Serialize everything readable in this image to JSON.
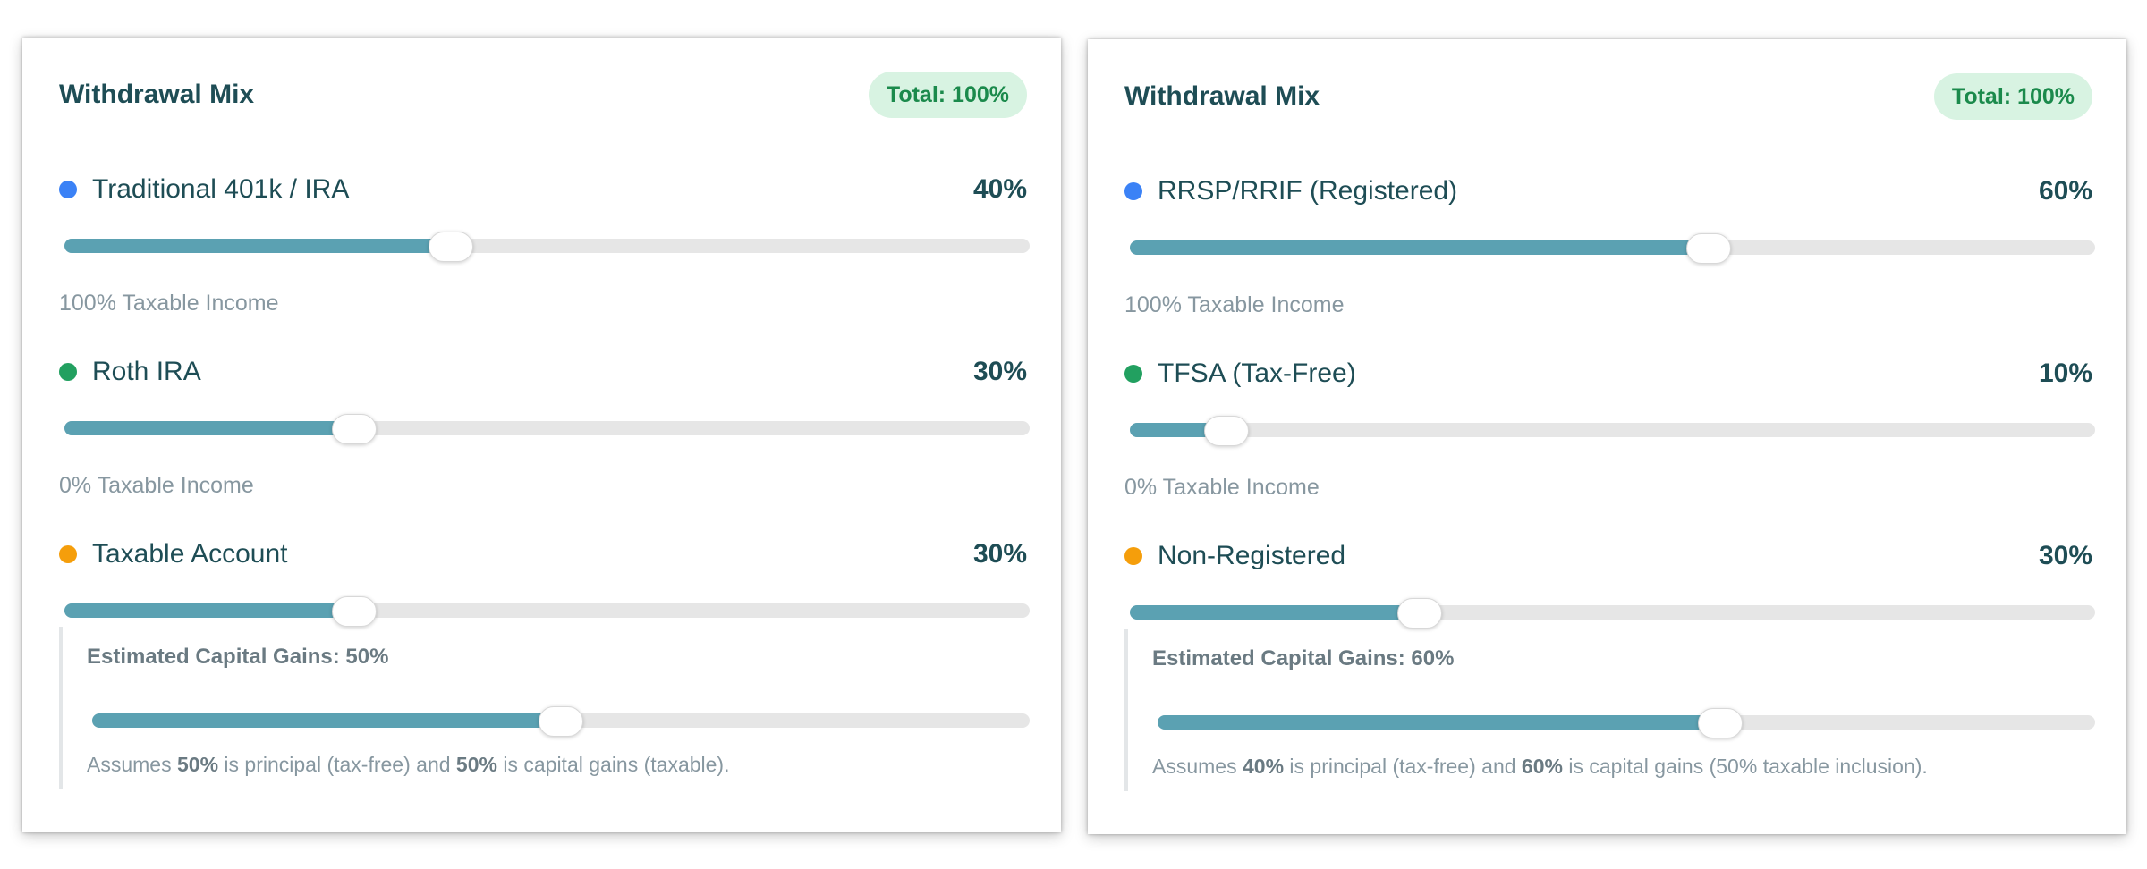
{
  "panels": [
    {
      "title": "Withdrawal Mix",
      "total_badge": "Total: 100%",
      "accounts": [
        {
          "name": "Traditional 401k / IRA",
          "percent_label": "40%",
          "value": 40,
          "dot_color": "#3b82f6",
          "taxable_note": "100% Taxable Income"
        },
        {
          "name": "Roth IRA",
          "percent_label": "30%",
          "value": 30,
          "dot_color": "#22a060",
          "taxable_note": "0% Taxable Income"
        },
        {
          "name": "Taxable Account",
          "percent_label": "30%",
          "value": 30,
          "dot_color": "#f59e0b"
        }
      ],
      "capital_gains": {
        "label": "Estimated Capital Gains: 50%",
        "value": 50,
        "note_prefix": "Assumes ",
        "principal_pct": "50%",
        "note_middle": " is principal (tax-free) and ",
        "gains_pct": "50%",
        "note_suffix": " is capital gains (taxable)."
      }
    },
    {
      "title": "Withdrawal Mix",
      "total_badge": "Total: 100%",
      "accounts": [
        {
          "name": "RRSP/RRIF (Registered)",
          "percent_label": "60%",
          "value": 60,
          "dot_color": "#3b82f6",
          "taxable_note": "100% Taxable Income"
        },
        {
          "name": "TFSA (Tax-Free)",
          "percent_label": "10%",
          "value": 10,
          "dot_color": "#22a060",
          "taxable_note": "0% Taxable Income"
        },
        {
          "name": "Non-Registered",
          "percent_label": "30%",
          "value": 30,
          "dot_color": "#f59e0b"
        }
      ],
      "capital_gains": {
        "label": "Estimated Capital Gains: 60%",
        "value": 60,
        "note_prefix": "Assumes ",
        "principal_pct": "40%",
        "note_middle": " is principal (tax-free) and ",
        "gains_pct": "60%",
        "note_suffix": " is capital gains (50% taxable inclusion)."
      }
    }
  ]
}
